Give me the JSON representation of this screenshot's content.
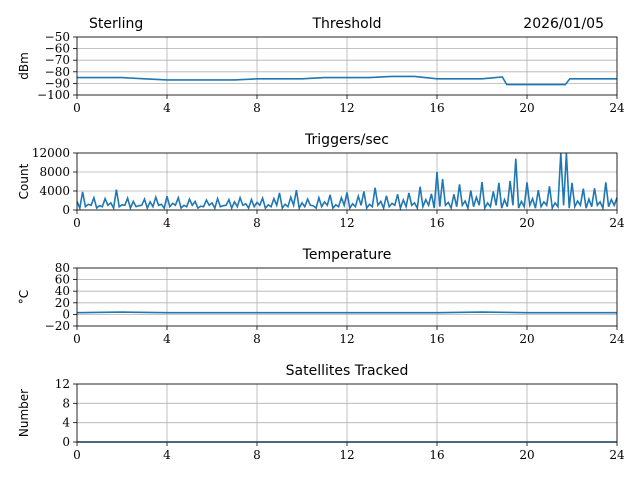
{
  "header": {
    "station": "Sterling",
    "date": "2026/01/05"
  },
  "chart_data": [
    {
      "type": "line",
      "title": "Threshold",
      "xlabel": "",
      "ylabel": "dBm",
      "xlim": [
        0,
        24
      ],
      "ylim": [
        -100,
        -50
      ],
      "xticks": [
        0,
        4,
        8,
        12,
        16,
        20,
        24
      ],
      "yticks": [
        -100,
        -90,
        -80,
        -70,
        -60,
        -50
      ],
      "ytick_labels": [
        "−100",
        "−90",
        "−80",
        "−70",
        "−60",
        "−50"
      ],
      "grid": true,
      "x": [
        0,
        1,
        2,
        3,
        4,
        5,
        6,
        7,
        8,
        9,
        10,
        11,
        12,
        13,
        14,
        15,
        16,
        17,
        18,
        18.9,
        19.1,
        20,
        21,
        21.7,
        21.9,
        23,
        24
      ],
      "values": [
        -85,
        -85,
        -85,
        -86,
        -87,
        -87,
        -87,
        -87,
        -86,
        -86,
        -86,
        -85,
        -85,
        -85,
        -84,
        -84,
        -86,
        -86,
        -86,
        -84.5,
        -91,
        -91,
        -91,
        -91,
        -86,
        -86,
        -86
      ],
      "color": "#1f77b4"
    },
    {
      "type": "line",
      "title": "Triggers/sec",
      "xlabel": "",
      "ylabel": "Count",
      "xlim": [
        0,
        24
      ],
      "ylim": [
        0,
        12000
      ],
      "xticks": [
        0,
        4,
        8,
        12,
        16,
        20,
        24
      ],
      "yticks": [
        0,
        4000,
        8000,
        12000
      ],
      "ytick_labels": [
        "0",
        "4000",
        "8000",
        "12000"
      ],
      "grid": true,
      "x_step": 0.25,
      "values": [
        1800,
        3800,
        1200,
        2600,
        900,
        2400,
        1500,
        4300,
        1100,
        2500,
        1800,
        900,
        2300,
        1700,
        2700,
        1200,
        2900,
        1400,
        2600,
        1000,
        2300,
        1800,
        800,
        2100,
        1500,
        2400,
        900,
        2200,
        1700,
        2600,
        1300,
        2200,
        1600,
        2500,
        1100,
        2400,
        3600,
        1200,
        2700,
        4200,
        1500,
        2300,
        900,
        2600,
        1700,
        3200,
        1100,
        2600,
        3700,
        1300,
        2900,
        3900,
        1200,
        4700,
        1800,
        3000,
        1400,
        3300,
        2100,
        3600,
        1500,
        4900,
        2200,
        3400,
        8000,
        6500,
        1600,
        3300,
        5400,
        1900,
        4100,
        2700,
        5900,
        1500,
        3900,
        5700,
        2200,
        6100,
        10800,
        1800,
        5800,
        2400,
        4200,
        1700,
        5000,
        1500,
        12000,
        12000,
        5700,
        1900,
        4500,
        2300,
        4600,
        1700,
        5800,
        2200,
        2600
      ],
      "color": "#1f77b4"
    },
    {
      "type": "line",
      "title": "Temperature",
      "xlabel": "",
      "ylabel": "°C",
      "xlim": [
        0,
        24
      ],
      "ylim": [
        -20,
        80
      ],
      "xticks": [
        0,
        4,
        8,
        12,
        16,
        20,
        24
      ],
      "yticks": [
        -20,
        0,
        20,
        40,
        60,
        80
      ],
      "ytick_labels": [
        "−20",
        "0",
        "20",
        "40",
        "60",
        "80"
      ],
      "grid": true,
      "x": [
        0,
        2,
        4,
        8,
        12,
        16,
        18,
        20,
        24
      ],
      "values": [
        3,
        4,
        3,
        3,
        3,
        3,
        4,
        3,
        3
      ],
      "color": "#1f77b4"
    },
    {
      "type": "line",
      "title": "Satellites Tracked",
      "xlabel": "",
      "ylabel": "Number",
      "xlim": [
        0,
        24
      ],
      "ylim": [
        0,
        12
      ],
      "xticks": [
        0,
        4,
        8,
        12,
        16,
        20,
        24
      ],
      "yticks": [
        0,
        4,
        8,
        12
      ],
      "ytick_labels": [
        "0",
        "4",
        "8",
        "12"
      ],
      "grid": true,
      "x": [
        0,
        24
      ],
      "values": [
        0,
        0
      ],
      "color": "#1f77b4"
    }
  ]
}
